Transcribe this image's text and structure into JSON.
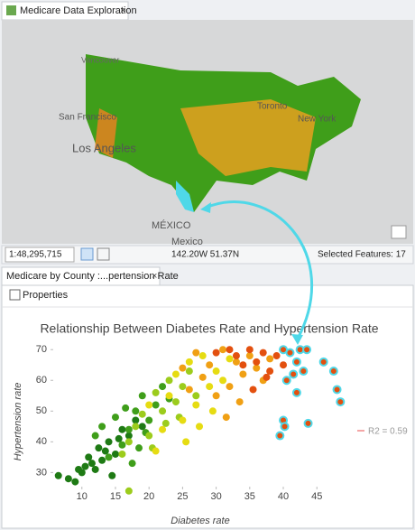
{
  "map_pane": {
    "tab": "Medicare Data Exploration",
    "labels": [
      "Vancouver",
      "San Francisco",
      "Los Angeles",
      "Toronto",
      "New York",
      "MÉXICO",
      "Mexico"
    ],
    "scale": "1:48,295,715",
    "coordinates": "142.20W 51.37N",
    "selected": "Selected Features: 17"
  },
  "chart_pane": {
    "tab": "Medicare by County :...pertension Rate",
    "toolbar": "Properties"
  },
  "chart_data": {
    "type": "scatter",
    "title": "Relationship Between Diabetes Rate and Hypertension Rate",
    "x_label": "Diabetes rate",
    "y_label": "Hypertension rate",
    "annotation": "R2 = 0.59",
    "annotation_color": "#f4a6a6",
    "xlim": [
      6,
      49
    ],
    "xticks": [
      10,
      15,
      20,
      25,
      30,
      35,
      40,
      45
    ],
    "ylim": [
      26,
      73
    ],
    "yticks": [
      30,
      40,
      50,
      60,
      70
    ],
    "series": [
      {
        "color": "#1e7a14",
        "x": [
          6.5,
          8,
          9,
          10,
          10.5,
          11,
          12,
          12.5,
          13,
          14,
          14.5,
          15,
          16,
          17,
          18,
          19,
          11.5,
          13.5,
          15.5,
          9.5
        ],
        "values": [
          29,
          28,
          27,
          30,
          32,
          35,
          31,
          38,
          34,
          40,
          29,
          36,
          44,
          42,
          47,
          45,
          33,
          37,
          41,
          31
        ]
      },
      {
        "color": "#3f9e1a",
        "x": [
          12,
          13,
          14,
          15,
          16,
          16.5,
          17,
          18,
          18.5,
          19,
          20,
          21,
          22,
          23,
          17.5,
          19.5
        ],
        "values": [
          42,
          45,
          35,
          48,
          39,
          51,
          44,
          50,
          38,
          55,
          47,
          52,
          58,
          54,
          33,
          43
        ]
      },
      {
        "color": "#9ccc1c",
        "x": [
          16,
          17,
          18,
          19,
          20,
          21,
          22,
          23,
          24,
          25,
          26,
          27,
          20.5,
          22.5,
          24.5,
          17
        ],
        "values": [
          36,
          40,
          45,
          49,
          42,
          56,
          50,
          60,
          53,
          58,
          63,
          55,
          38,
          46,
          48,
          24
        ]
      },
      {
        "color": "#e6dc12",
        "x": [
          20,
          22,
          23,
          24,
          25,
          26,
          27,
          28,
          29,
          30,
          31,
          32,
          25.5,
          27.5,
          29.5,
          21
        ],
        "values": [
          52,
          44,
          55,
          62,
          47,
          66,
          52,
          68,
          58,
          63,
          60,
          67,
          40,
          45,
          50,
          37
        ]
      },
      {
        "color": "#f0a014",
        "x": [
          25,
          26,
          27,
          28,
          29,
          30,
          31,
          32,
          33,
          34,
          35,
          36,
          37,
          38,
          31.5,
          33.5
        ],
        "values": [
          64,
          57,
          69,
          61,
          65,
          55,
          70,
          58,
          66,
          62,
          68,
          64,
          60,
          67,
          48,
          53
        ]
      },
      {
        "color": "#e3500f",
        "x": [
          30,
          32,
          33,
          34,
          35,
          36,
          37,
          38,
          39,
          40,
          35.5,
          37.5
        ],
        "values": [
          69,
          70,
          68,
          65,
          70,
          66,
          69,
          63,
          68,
          65,
          57,
          61
        ]
      },
      {
        "color": "#e3500f",
        "outline": "#4fd8e8",
        "x": [
          40,
          41,
          42.5,
          43.5,
          42,
          43,
          46,
          47.5,
          48,
          40.5,
          41.5,
          42,
          48.5,
          40,
          40.2,
          43.7,
          39.5
        ],
        "values": [
          70,
          69,
          70,
          70,
          66,
          63,
          66,
          63,
          57,
          60,
          62,
          56,
          53,
          47,
          45,
          46,
          42
        ]
      }
    ]
  }
}
